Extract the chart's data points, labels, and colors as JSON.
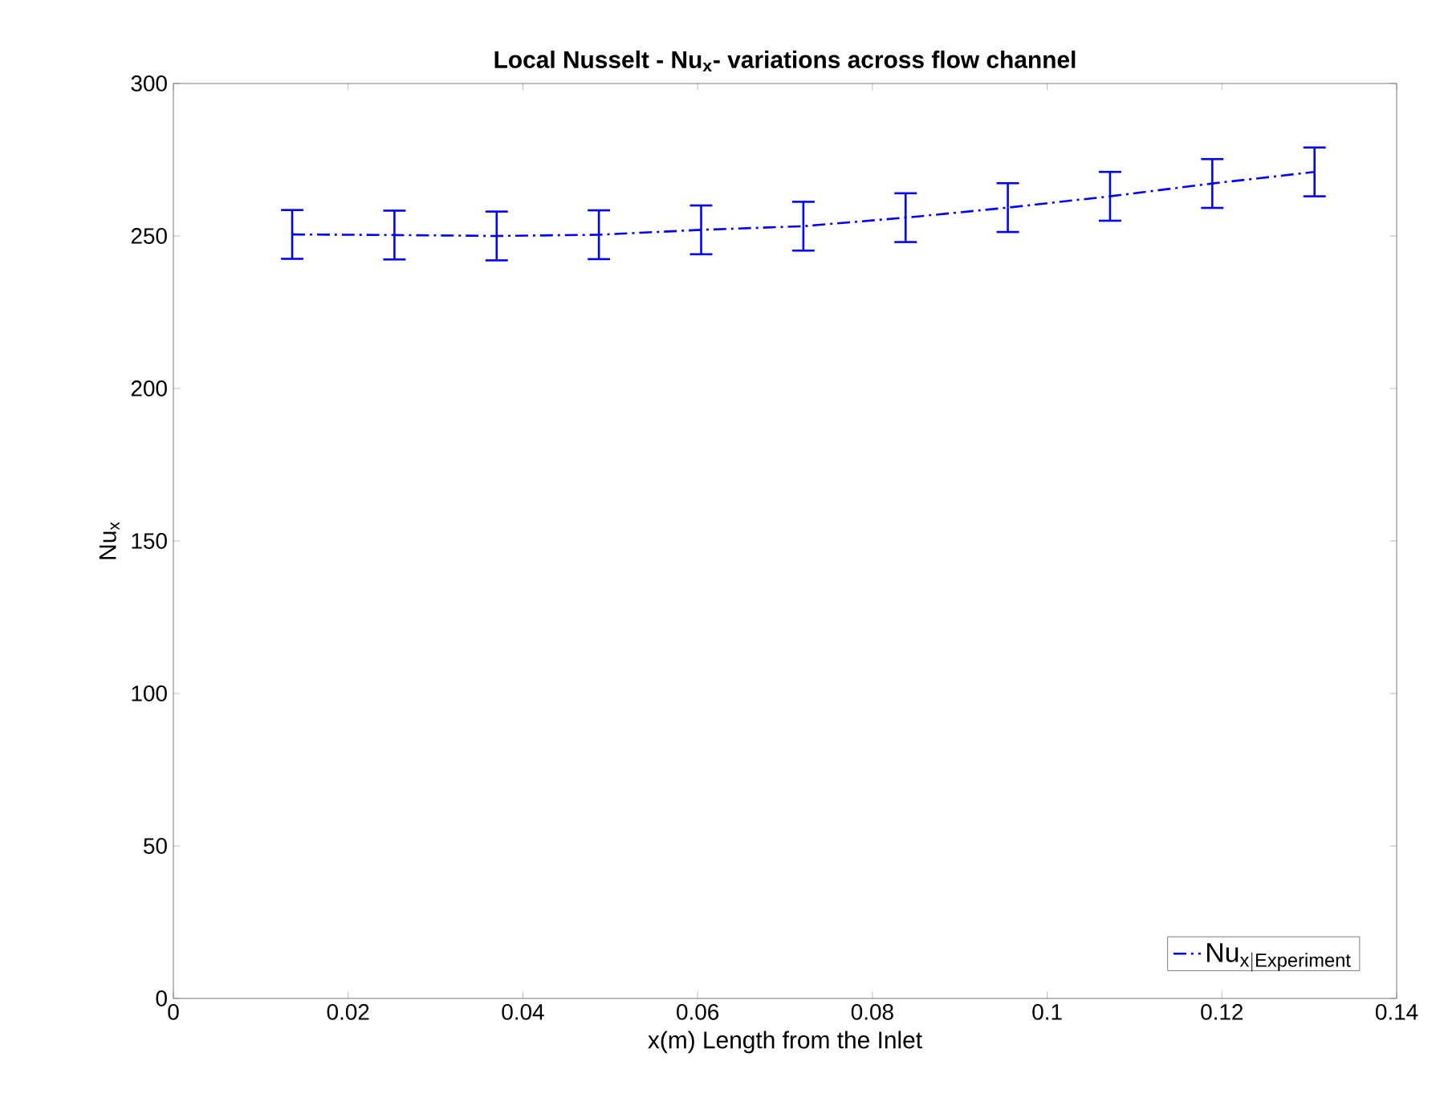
{
  "chart_data": {
    "type": "line",
    "title": "Local Nusselt - Nu$_{x}$- variations across flow channel",
    "xlabel": "x(m) Length from the Inlet",
    "ylabel": "Nu$_{x}$",
    "x": [
      0.0136,
      0.0253,
      0.037,
      0.0487,
      0.0604,
      0.0721,
      0.0838,
      0.0955,
      0.1072,
      0.1189,
      0.1306
    ],
    "series": [
      {
        "name": "\\mathrm{Nu}_{\\mathrm{x|Experiment}}",
        "color": "#0000ff",
        "values": [
          250.5,
          250.3,
          250,
          250.4,
          252,
          253.2,
          256,
          259.3,
          263,
          267.2,
          271
        ],
        "errors": [
          8,
          8,
          8,
          8,
          8,
          8,
          8,
          8,
          8,
          8,
          8
        ]
      }
    ],
    "xlim": [
      0,
      0.14
    ],
    "ylim": [
      0,
      300
    ],
    "xticks": [
      0,
      0.02,
      0.04,
      0.06,
      0.08,
      0.1,
      0.12,
      0.14
    ],
    "yticks": [
      0,
      50,
      100,
      150,
      200,
      250,
      300
    ],
    "grid": false,
    "legend": "bottom right",
    "marker": "none",
    "line_style": "dashdot"
  }
}
